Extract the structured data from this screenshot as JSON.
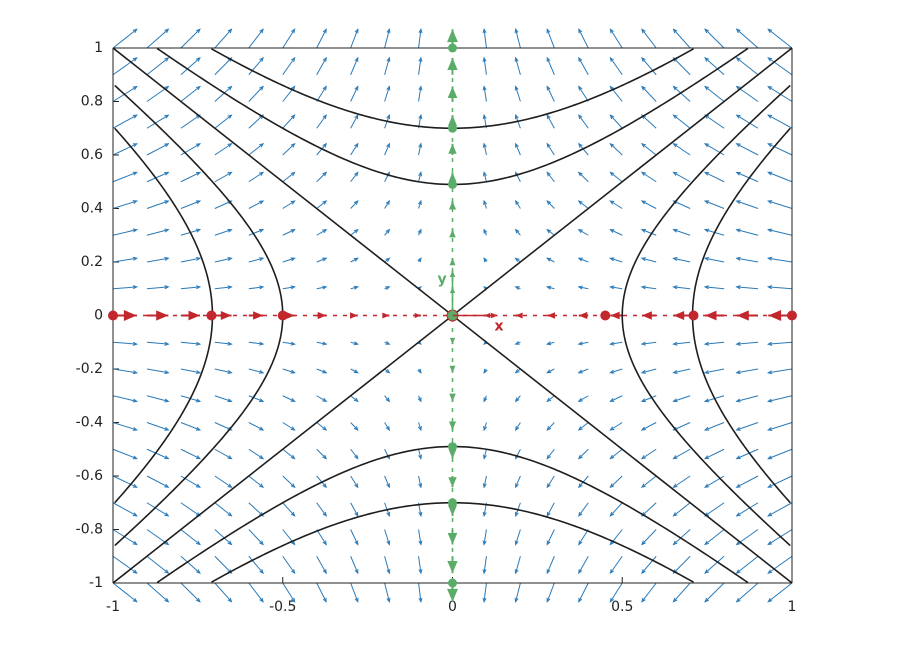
{
  "chart_data": {
    "type": "phase-portrait",
    "xlim": [
      -1,
      1
    ],
    "ylim": [
      -1,
      1
    ],
    "xticks": [
      -1,
      -0.5,
      0,
      0.5,
      1
    ],
    "yticks": [
      -1,
      -0.8,
      -0.6,
      -0.4,
      -0.2,
      0,
      0.2,
      0.4,
      0.6,
      0.8,
      1
    ],
    "x_label": "x",
    "y_label": "y",
    "field": {
      "matrix": [
        [
          -1,
          0
        ],
        [
          0,
          1
        ]
      ],
      "x": [
        -1,
        -0.9,
        -0.8,
        -0.7,
        -0.6,
        -0.5,
        -0.4,
        -0.3,
        -0.2,
        -0.1,
        0,
        0.1,
        0.2,
        0.3,
        0.4,
        0.5,
        0.6,
        0.7,
        0.8,
        0.9,
        1
      ],
      "y": [
        -1,
        -0.9,
        -0.8,
        -0.7,
        -0.6,
        -0.5,
        -0.4,
        -0.3,
        -0.2,
        -0.1,
        0,
        0.1,
        0.2,
        0.3,
        0.4,
        0.5,
        0.6,
        0.7,
        0.8,
        0.9,
        1
      ],
      "color": "#2a7ab8"
    },
    "levels": [
      0.49,
      0.24,
      0,
      -0.25,
      -0.5
    ],
    "curve_color": "#1e1e1e",
    "x_axis_points": [
      -1,
      -0.71,
      -0.5,
      0,
      0.45,
      0.71,
      1
    ],
    "y_axis_points": [
      -1,
      -0.7,
      -0.49,
      0,
      0.49,
      0.7,
      1
    ],
    "x_color": "#c1272d",
    "y_color": "#5aac68"
  }
}
